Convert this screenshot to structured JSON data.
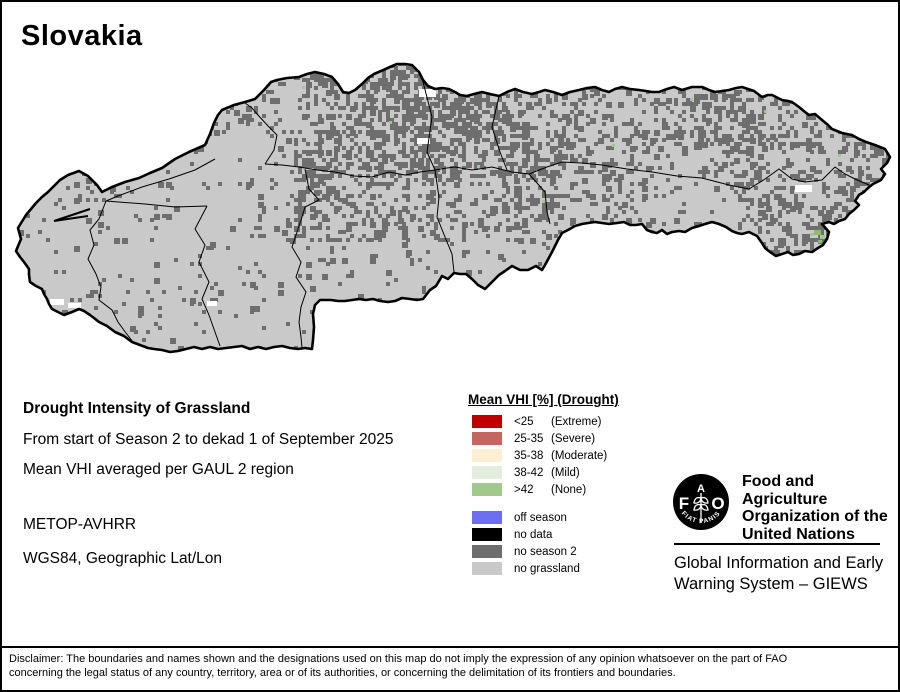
{
  "title": "Slovakia",
  "info": {
    "heading": "Drought Intensity of Grassland",
    "period": "From start of Season 2 to dekad 1 of September 2025",
    "aggregation": "Mean VHI averaged per GAUL 2 region",
    "sensor": "METOP-AVHRR",
    "projection": "WGS84, Geographic Lat/Lon"
  },
  "legend": {
    "title": "Mean VHI [%] (Drought)",
    "drought_classes": [
      {
        "range": "<25",
        "label": "(Extreme)",
        "color": "#c00000"
      },
      {
        "range": "25-35",
        "label": "(Severe)",
        "color": "#c4655f"
      },
      {
        "range": "35-38",
        "label": "(Moderate)",
        "color": "#fcefd4"
      },
      {
        "range": "38-42",
        "label": "(Mild)",
        "color": "#e4eedd"
      },
      {
        "range": ">42",
        "label": "(None)",
        "color": "#a2c98c"
      }
    ],
    "other_classes": [
      {
        "label": "off season",
        "color": "#6e6ef2"
      },
      {
        "label": "no data",
        "color": "#000000"
      },
      {
        "label": "no season 2",
        "color": "#6e6e6e"
      },
      {
        "label": "no grassland",
        "color": "#c9c9c9"
      }
    ]
  },
  "branding": {
    "logo_letter_f": "F",
    "logo_letter_a": "A",
    "logo_letter_o": "O",
    "logo_motto": "FIAT PANIS",
    "org_lines": [
      "Food and Agriculture",
      "Organization of the",
      "United Nations"
    ],
    "giews_lines": [
      "Global Information and Early",
      "Warning System – GIEWS"
    ]
  },
  "disclaimer_lines": [
    "Disclaimer: The boundaries and names shown and the designations used on this map do not imply the expression of any opinion whatsoever on the part of FAO",
    "concerning the legal status of any country, territory, area or of its authorities, or concerning the delimitation of its frontiers and boundaries."
  ],
  "map_colors": {
    "background": "#ffffff",
    "land_no_grassland": "#c9c9c9",
    "no_season2_speckle": "#6e6e6e",
    "border": "#000000",
    "vhi_none_green": "#a2c98c",
    "vhi_none_green_dark": "#8cbb72",
    "white_patch": "#ffffff"
  }
}
